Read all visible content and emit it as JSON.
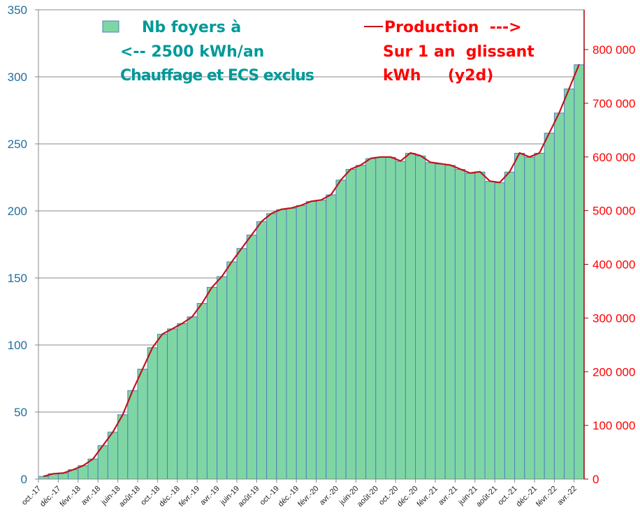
{
  "chart_data": {
    "type": "bar+line",
    "title": "",
    "categories": [
      "oct.-17",
      "nov.-17",
      "déc.-17",
      "janv.-18",
      "févr.-18",
      "mars-18",
      "avr.-18",
      "mai-18",
      "juin-18",
      "juil.-18",
      "août-18",
      "sept.-18",
      "oct.-18",
      "nov.-18",
      "déc.-18",
      "janv.-19",
      "févr.-19",
      "mars-19",
      "avr.-19",
      "mai-19",
      "juin-19",
      "juil.-19",
      "août-19",
      "sept.-19",
      "oct.-19",
      "nov.-19",
      "déc.-19",
      "janv.-20",
      "févr.-20",
      "mars-20",
      "avr.-20",
      "mai-20",
      "juin-20",
      "juil.-20",
      "août-20",
      "sept.-20",
      "oct.-20",
      "nov.-20",
      "déc.-20",
      "janv.-21",
      "févr.-21",
      "mars-21",
      "avr.-21",
      "mai-21",
      "juin-21",
      "juil.-21",
      "août-21",
      "sept.-21",
      "oct.-21",
      "nov.-21",
      "déc.-21",
      "janv.-22",
      "févr.-22",
      "mars-22",
      "avr.-22"
    ],
    "tick_labels": [
      "oct.-17",
      "déc.-17",
      "févr.-18",
      "avr.-18",
      "juin-18",
      "août-18",
      "oct.-18",
      "déc.-18",
      "févr.-19",
      "avr.-19",
      "juin-19",
      "août-19",
      "oct.-19",
      "déc.-19",
      "févr.-20",
      "avr.-20",
      "juin-20",
      "août-20",
      "oct.-20",
      "déc.-20",
      "févr.-21",
      "avr.-21",
      "juin-21",
      "août-21",
      "oct.-21",
      "déc.-21",
      "févr.-22",
      "avr.-22"
    ],
    "series": [
      {
        "name": "Nb foyers à <-- 2500 kWh/an Chauffage et ECS exclus",
        "type": "bar",
        "axis": "left",
        "color": "#7fd6a5",
        "edge_color": "#4f81bd",
        "values": [
          2,
          4,
          4.5,
          7,
          10,
          15,
          25,
          35,
          48,
          66,
          82,
          98,
          108,
          112,
          116,
          121,
          131,
          143,
          151,
          162,
          172,
          182,
          192,
          198,
          201,
          202,
          204,
          207,
          208,
          212,
          223,
          231,
          234,
          239,
          240,
          240,
          237,
          243,
          241,
          236,
          235,
          234,
          231,
          228,
          229,
          222,
          221,
          229,
          243,
          240,
          243,
          258,
          273,
          291,
          309
        ]
      },
      {
        "name": "Production ---> Sur 1 an glissant kWh (y2d)",
        "type": "line",
        "axis": "right",
        "color": "#c0141c",
        "values": [
          5000,
          10000,
          11250,
          17500,
          25000,
          37500,
          62500,
          87500,
          120000,
          165000,
          205000,
          245000,
          270000,
          280000,
          290000,
          302500,
          327500,
          357500,
          377500,
          405000,
          430000,
          455000,
          480000,
          495000,
          502500,
          505000,
          510000,
          517500,
          520000,
          530000,
          557500,
          577500,
          585000,
          597500,
          600000,
          600000,
          592500,
          607500,
          602500,
          590000,
          587500,
          585000,
          577500,
          570000,
          572500,
          555000,
          552500,
          572500,
          607500,
          600000,
          607500,
          645000,
          682500,
          727500,
          772500
        ]
      }
    ],
    "y_left": {
      "min": 0,
      "max": 350,
      "step": 50,
      "ticks": [
        "0",
        "50",
        "100",
        "150",
        "200",
        "250",
        "300",
        "350"
      ],
      "color": "#1f6f9f"
    },
    "y_right": {
      "min": 0,
      "max": 800000,
      "step": 100000,
      "ticks": [
        "0",
        "100 000",
        "200 000",
        "300 000",
        "400 000",
        "500 000",
        "600 000",
        "700 000",
        "800 000"
      ],
      "color": "#ff0000"
    },
    "grid": true,
    "legend": {
      "bar_lines": [
        "Nb foyers à",
        "<-- 2500 kWh/an",
        "Chauffage et ECS exclus"
      ],
      "bar_color": "#009999",
      "line_lines": [
        "Production  --->",
        "Sur 1 an  glissant",
        "kWh     (y2d)"
      ],
      "line_color": "#ff0000",
      "placement": "top"
    }
  }
}
